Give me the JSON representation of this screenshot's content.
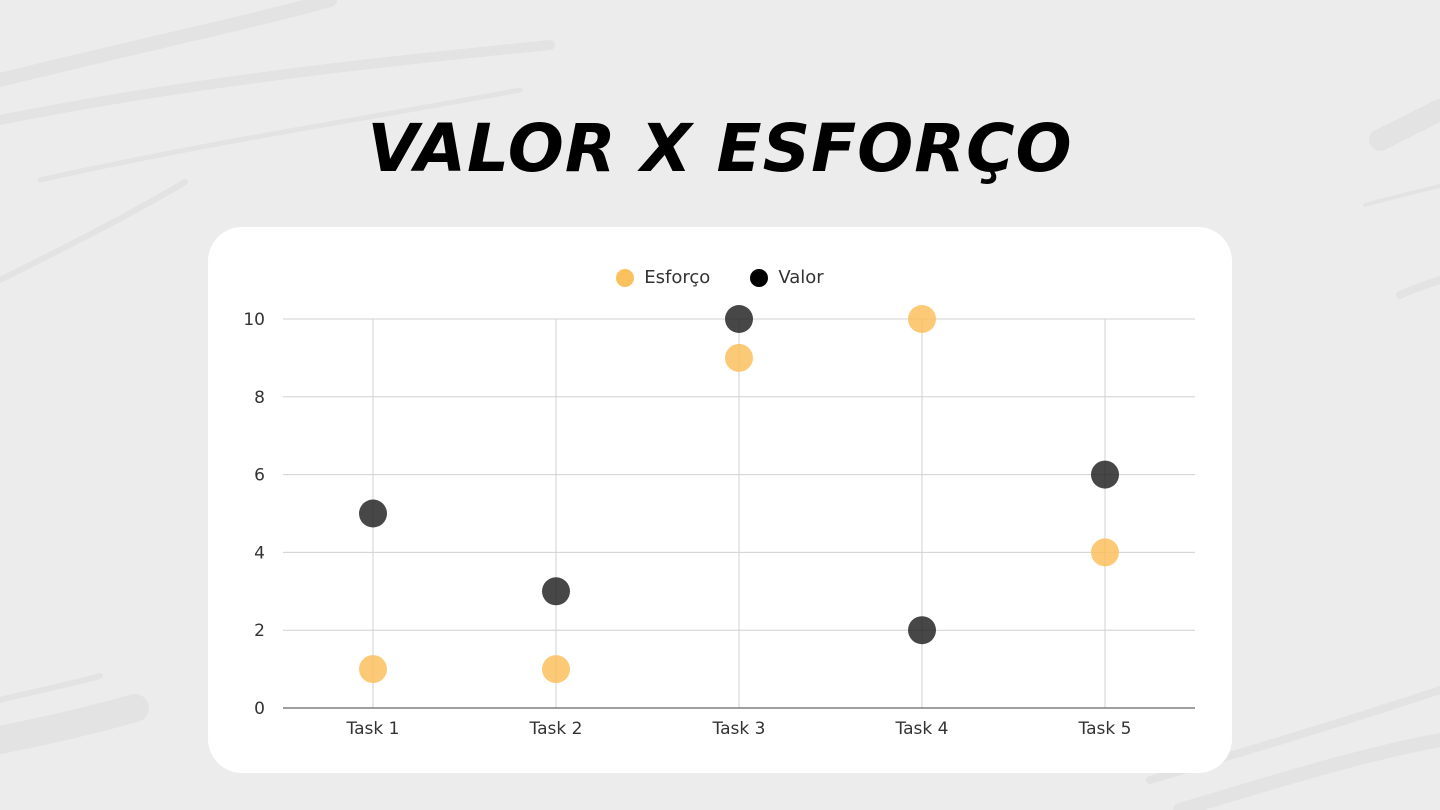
{
  "title": "VALOR X ESFORÇO",
  "colors": {
    "background": "#ececec",
    "card": "#ffffff",
    "esforco": "#fbc15e",
    "valor": "#1f1f1f",
    "grid": "#d0d0d0",
    "axis": "#666666"
  },
  "chart_data": {
    "type": "scatter",
    "categories": [
      "Task 1",
      "Task 2",
      "Task 3",
      "Task 4",
      "Task 5"
    ],
    "series": [
      {
        "name": "Esforço",
        "color": "#fbc15e",
        "values": [
          1,
          1,
          9,
          10,
          4
        ]
      },
      {
        "name": "Valor",
        "color": "#1f1f1f",
        "values": [
          5,
          3,
          10,
          2,
          6
        ]
      }
    ],
    "yticks": [
      "0",
      "2",
      "4",
      "6",
      "8",
      "10"
    ],
    "ylim": [
      0,
      10
    ],
    "grid": true,
    "legend_position": "top-center"
  }
}
